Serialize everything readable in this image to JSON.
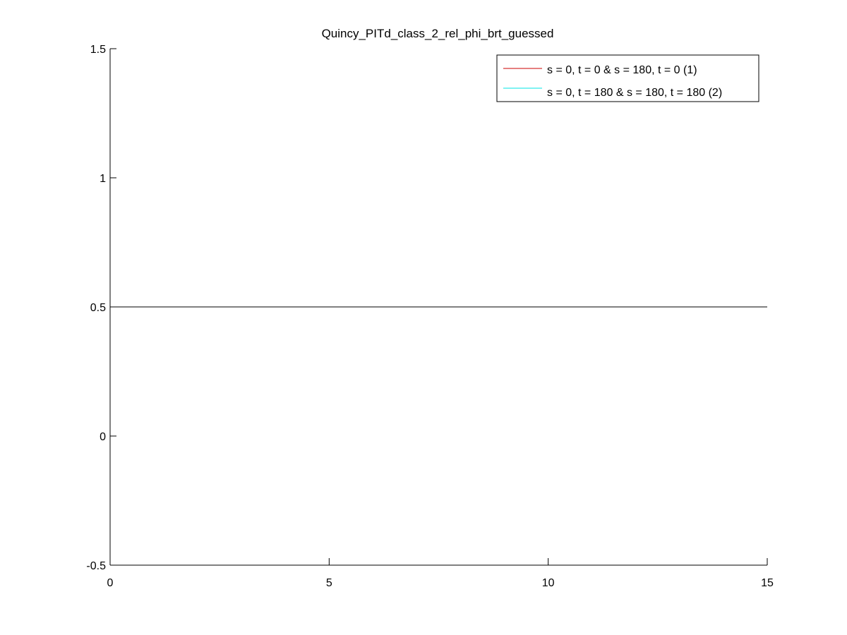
{
  "chart_data": {
    "type": "line",
    "title": "Quincy_PITd_class_2_rel_phi_brt_guessed",
    "xlabel": "",
    "ylabel": "",
    "xlim": [
      0,
      15
    ],
    "ylim": [
      -0.5,
      1.5
    ],
    "x_ticks": [
      0,
      5,
      10,
      15
    ],
    "y_ticks": [
      -0.5,
      0,
      0.5,
      1,
      1.5
    ],
    "x_tick_labels": [
      "0",
      "5",
      "10",
      "15"
    ],
    "y_tick_labels": [
      "-0.5",
      "0",
      "0.5",
      "1",
      "1.5"
    ],
    "grid": false,
    "legend_position": "top-right",
    "legend": [
      {
        "label": "s = 0, t = 0 & s = 180, t = 0 (1)",
        "color": "#cc0000"
      },
      {
        "label": "s = 0, t = 180 & s = 180, t = 180 (2)",
        "color": "#00e5e5"
      }
    ],
    "series": [
      {
        "name": "s = 0, t = 0 & s = 180, t = 0 (1)",
        "color": "#cc0000",
        "x": [],
        "y": []
      },
      {
        "name": "s = 0, t = 180 & s = 180, t = 180 (2)",
        "color": "#00e5e5",
        "x": [],
        "y": []
      }
    ],
    "reference_lines": [
      {
        "y": 0.5,
        "x": [
          0,
          15
        ],
        "color": "#000000"
      }
    ]
  }
}
